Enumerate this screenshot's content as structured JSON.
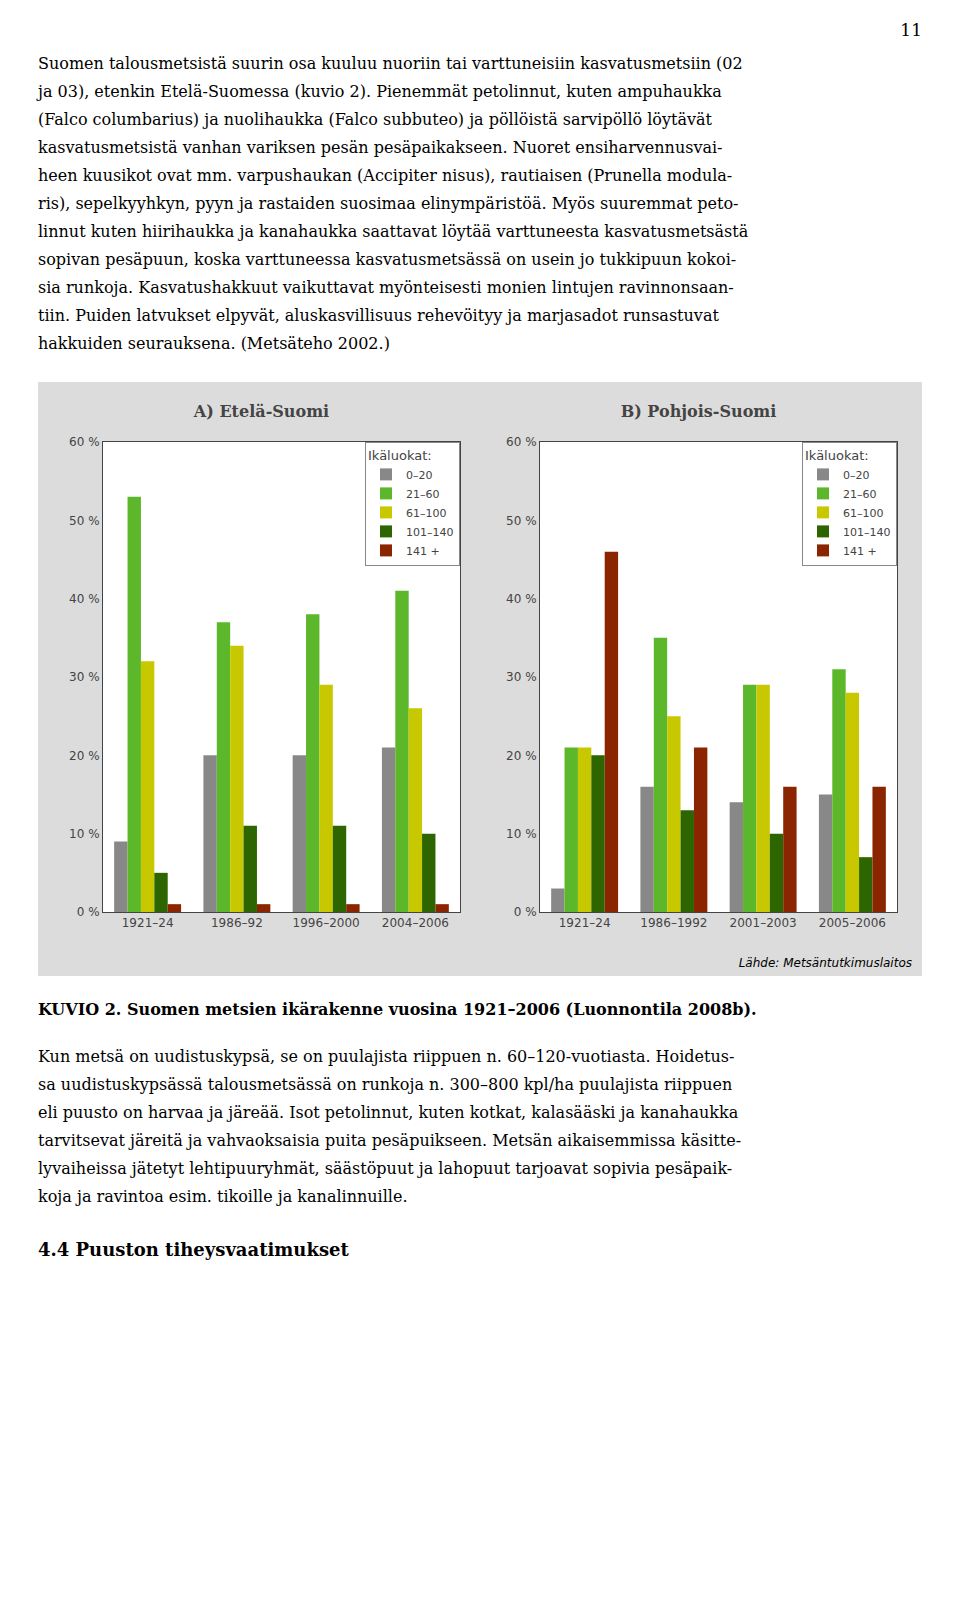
{
  "page_number": "11",
  "para1_lines": [
    "Suomen talousmetsistä suurin osa kuuluu nuoriin tai varttuneisiin kasvatusmetsiin (02",
    "ja 03), etenkin Etelä-Suomessa (kuvio 2). Pienemmät petolinnut, kuten ampuhaukka",
    "(Falco columbarius) ja nuolihaukka (Falco subbuteo) ja pöllöistä sarvipöllö löytävät",
    "kasvatusmetsistä vanhan variksen pesän pesäpaikakseen. Nuoret ensiharvennusvai-",
    "heen kuusikot ovat mm. varpushaukan (Accipiter nisus), rautiaisen (Prunella modula-",
    "ris), sepelkyyhkyn, pyyn ja rastaiden suosimaa elinympäristöä. Myös suuremmat peto-",
    "linnut kuten hiirihaukka ja kanahaukka saattavat löytää varttuneesta kasvatusmetsästä",
    "sopivan pesäpuun, koska varttuneessa kasvatusmetsässä on usein jo tukkipuun kokoi-",
    "sia runkoja. Kasvatushakkuut vaikuttavat myönteisesti monien lintujen ravinnonsaan-",
    "tiin. Puiden latvukset elpyvät, aluskasvillisuus rehevöityy ja marjasadot runsastuvat",
    "hakkuiden seurauksena. (Metsäteho 2002.)"
  ],
  "chart_data": [
    {
      "type": "bar",
      "title": "A) Etelä-Suomi",
      "categories": [
        "1921–24",
        "1986–92",
        "1996–2000",
        "2004–2006"
      ],
      "series": [
        {
          "name": "0–20",
          "color": "#888888",
          "values": [
            9,
            20,
            20,
            21
          ]
        },
        {
          "name": "21–60",
          "color": "#5cb82a",
          "values": [
            53,
            37,
            38,
            41
          ]
        },
        {
          "name": "61–100",
          "color": "#c8c800",
          "values": [
            32,
            34,
            29,
            26
          ]
        },
        {
          "name": "101–140",
          "color": "#2d6600",
          "values": [
            5,
            11,
            11,
            10
          ]
        },
        {
          "name": "141 +",
          "color": "#8b2500",
          "values": [
            1,
            1,
            1,
            1
          ]
        }
      ],
      "ylim": [
        0,
        60
      ],
      "yticks": [
        {
          "value": 0,
          "label": "0 %"
        },
        {
          "value": 10,
          "label": "10 %"
        },
        {
          "value": 20,
          "label": "20 %"
        },
        {
          "value": 30,
          "label": "30 %"
        },
        {
          "value": 40,
          "label": "40 %"
        },
        {
          "value": 50,
          "label": "50 %"
        },
        {
          "value": 60,
          "label": "60 %"
        }
      ],
      "grid": false,
      "legend": "upper right",
      "legend_title": "Ikäluokat:"
    },
    {
      "type": "bar",
      "title": "B) Pohjois-Suomi",
      "categories": [
        "1921–24",
        "1986–1992",
        "2001–2003",
        "2005–2006"
      ],
      "series": [
        {
          "name": "0–20",
          "color": "#888888",
          "values": [
            3,
            16,
            14,
            15
          ]
        },
        {
          "name": "21–60",
          "color": "#5cb82a",
          "values": [
            21,
            35,
            29,
            31
          ]
        },
        {
          "name": "61–100",
          "color": "#c8c800",
          "values": [
            21,
            25,
            29,
            28
          ]
        },
        {
          "name": "101–140",
          "color": "#2d6600",
          "values": [
            20,
            13,
            10,
            7
          ]
        },
        {
          "name": "141 +",
          "color": "#8b2500",
          "values": [
            46,
            21,
            16,
            16
          ]
        }
      ],
      "ylim": [
        0,
        60
      ],
      "yticks": [
        {
          "value": 0,
          "label": "0 %"
        },
        {
          "value": 10,
          "label": "10 %"
        },
        {
          "value": 20,
          "label": "20 %"
        },
        {
          "value": 30,
          "label": "30 %"
        },
        {
          "value": 40,
          "label": "40 %"
        },
        {
          "value": 50,
          "label": "50 %"
        },
        {
          "value": 60,
          "label": "60 %"
        }
      ],
      "grid": false,
      "legend": "upper right",
      "legend_title": "Ikäluokat:"
    }
  ],
  "source_label": "Lähde: Metsäntutkimuslaitos",
  "figure_caption": "KUVIO 2. Suomen metsien ikärakenne vuosina 1921–2006 (Luonnontila 2008b).",
  "para2_lines": [
    "Kun metsä on uudistuskypsä, se on puulajista riippuen n. 60–120-vuotiasta. Hoidetus-",
    "sa uudistuskypsässä talousmetsässä on runkoja n. 300–800 kpl/ha puulajista riippuen",
    "eli puusto on harvaa ja järeää. Isot petolinnut, kuten kotkat, kalasääski ja kanahaukka",
    "tarvitsevat järeitä ja vahvaoksaisia puita pesäpuikseen. Metsän aikaisemmissa käsitte-",
    "lyvaiheissa jätetyt lehtipuuryhmät, säästöpuut ja lahopuut tarjoavat sopivia pesäpaik-",
    "koja ja ravintoa esim. tikoille ja kanalinnuille."
  ],
  "section_heading": "4.4 Puuston tiheysvaatimukset"
}
